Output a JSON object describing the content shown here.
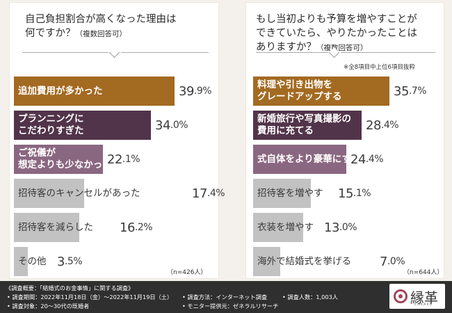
{
  "colors": {
    "orange": "#a36a21",
    "purple": "#52344a",
    "mauve": "#8a6781",
    "gray": "#c2c2c2"
  },
  "chart_data": [
    {
      "type": "bar",
      "title": "自己負担割合が高くなった理由は何ですか？",
      "title_lines": [
        "自己負担割合が高くなった理由は",
        "何ですか？"
      ],
      "subtitle": "（複数回答可）",
      "categories": [
        "追加費用が多かった",
        "プランニングに\nこだわりすぎた",
        "ご祝儀が\n想定よりも少なかった",
        "招待客のキャンセルがあった",
        "招待客を減らした",
        "その他"
      ],
      "values": [
        39.9,
        34.0,
        22.1,
        17.4,
        16.2,
        3.5
      ],
      "value_labels": [
        [
          "39",
          ".9",
          "%"
        ],
        [
          "34",
          ".0",
          "%"
        ],
        [
          "22",
          ".1",
          "%"
        ],
        [
          "17",
          ".4",
          "%"
        ],
        [
          "16",
          ".2",
          "%"
        ],
        [
          "3",
          ".5",
          "%"
        ]
      ],
      "colors": [
        "orange",
        "purple",
        "mauve",
        "gray",
        "gray",
        "gray"
      ],
      "n": "（n=426人）",
      "xlim": [
        0,
        40
      ]
    },
    {
      "type": "bar",
      "title": "もし当初よりも予算を増やすことができていたら、やりたかったことはありますか？",
      "title_lines": [
        "もし当初よりも予算を増やすことが",
        "できていたら、やりたかったことは",
        "ありますか？"
      ],
      "subtitle": "（複数回答可）",
      "note": "※全8項目中上位6項目抜粋",
      "categories": [
        "料理や引き出物を\nグレードアップする",
        "新婚旅行や写真撮影の\n費用に充てる",
        "式自体をより豪華にする",
        "招待客を増やす",
        "衣装を増やす",
        "海外で結婚式を挙げる"
      ],
      "values": [
        35.7,
        28.4,
        24.4,
        15.1,
        13.0,
        7.0
      ],
      "value_labels": [
        [
          "35",
          ".7",
          "%"
        ],
        [
          "28",
          ".4",
          "%"
        ],
        [
          "24",
          ".4",
          "%"
        ],
        [
          "15",
          ".1",
          "%"
        ],
        [
          "13",
          ".0",
          "%"
        ],
        [
          "7",
          ".0",
          "%"
        ]
      ],
      "colors": [
        "orange",
        "purple",
        "mauve",
        "gray",
        "gray",
        "gray"
      ],
      "n": "（n=644人）",
      "xlim": [
        0,
        40
      ]
    }
  ],
  "footer": {
    "heading": "《調査概要：「結婚式のお金事情」に関する調査》",
    "period": "• 調査期間：2022年11月18日（金）〜2022年11月19日（土）",
    "method": "• 調査方法：インターネット調査",
    "people": "• 調査人数：1,003人",
    "target": "• 調査対象：20〜30代の既婚者",
    "provider": "• モニター提供元：ゼネラルリサーチ"
  },
  "logo": {
    "text": "縁革",
    "sub": "ENKAKU",
    "icon": "enkaku-logo-icon"
  }
}
